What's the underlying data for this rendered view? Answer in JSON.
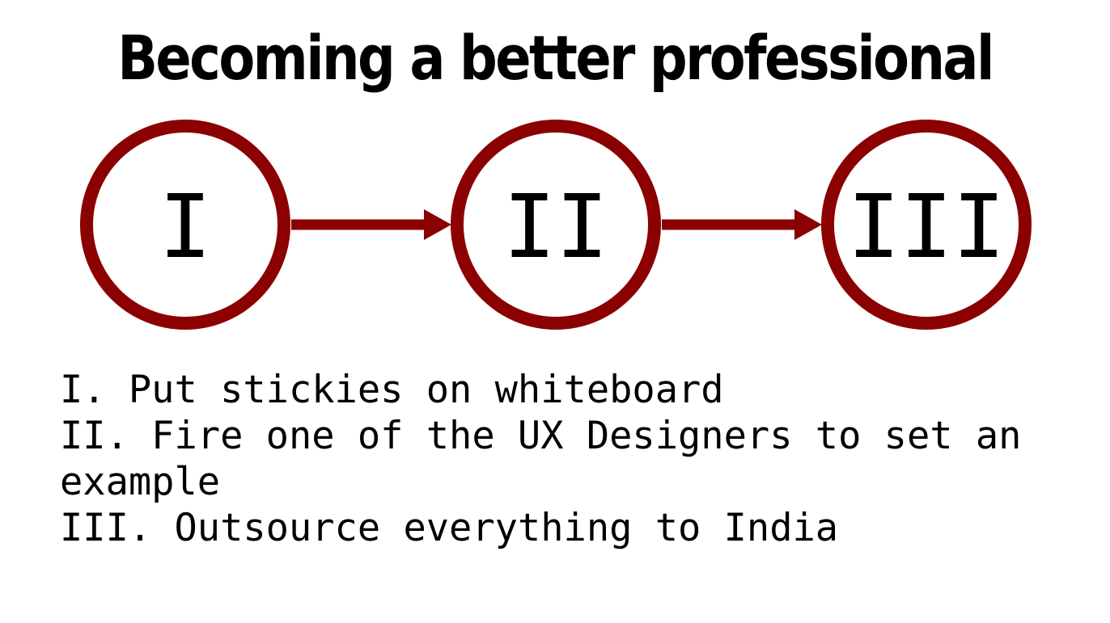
{
  "title": "Becoming a better professional",
  "colors": {
    "circle": "#8b0000",
    "arrow": "#8b0000",
    "text": "#000000",
    "background": "#ffffff"
  },
  "nodes": [
    {
      "label": "I"
    },
    {
      "label": "II"
    },
    {
      "label": "III"
    }
  ],
  "steps": [
    "I. Put stickies on whiteboard",
    "II. Fire one of the UX Designers to set an example",
    "III. Outsource everything to India"
  ]
}
